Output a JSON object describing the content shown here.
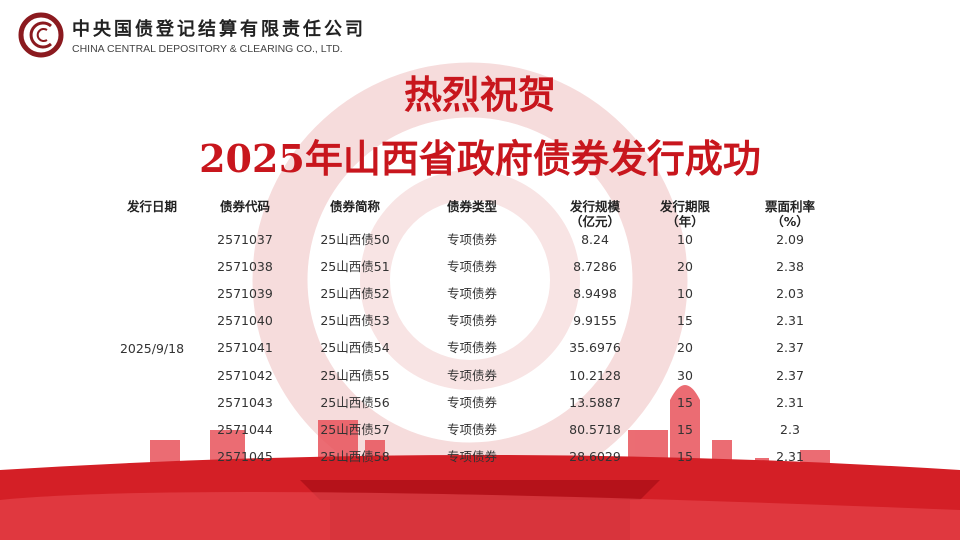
{
  "logo": {
    "cn": "中央国债登记结算有限责任公司",
    "en": "CHINA CENTRAL DEPOSITORY & CLEARING CO., LTD."
  },
  "title": {
    "line1": "热烈祝贺",
    "line2": "2025年山西省政府债券发行成功"
  },
  "colors": {
    "brand_red": "#c8161d",
    "text": "#333333"
  },
  "table": {
    "headers": [
      [
        "发行日期",
        ""
      ],
      [
        "债券代码",
        ""
      ],
      [
        "债券简称",
        ""
      ],
      [
        "债券类型",
        ""
      ],
      [
        "发行规模",
        "（亿元）"
      ],
      [
        "发行期限",
        "（年）"
      ],
      [
        "票面利率",
        "（%）"
      ]
    ],
    "issue_date": "2025/9/18",
    "rows": [
      {
        "code": "2571037",
        "name": "25山西债50",
        "type": "专项债券",
        "size": "8.24",
        "term": "10",
        "rate": "2.09"
      },
      {
        "code": "2571038",
        "name": "25山西债51",
        "type": "专项债券",
        "size": "8.7286",
        "term": "20",
        "rate": "2.38"
      },
      {
        "code": "2571039",
        "name": "25山西债52",
        "type": "专项债券",
        "size": "8.9498",
        "term": "10",
        "rate": "2.03"
      },
      {
        "code": "2571040",
        "name": "25山西债53",
        "type": "专项债券",
        "size": "9.9155",
        "term": "15",
        "rate": "2.31"
      },
      {
        "code": "2571041",
        "name": "25山西债54",
        "type": "专项债券",
        "size": "35.6976",
        "term": "20",
        "rate": "2.37"
      },
      {
        "code": "2571042",
        "name": "25山西债55",
        "type": "专项债券",
        "size": "10.2128",
        "term": "30",
        "rate": "2.37"
      },
      {
        "code": "2571043",
        "name": "25山西债56",
        "type": "专项债券",
        "size": "13.5887",
        "term": "15",
        "rate": "2.31"
      },
      {
        "code": "2571044",
        "name": "25山西债57",
        "type": "专项债券",
        "size": "80.5718",
        "term": "15",
        "rate": "2.3"
      },
      {
        "code": "2571045",
        "name": "25山西债58",
        "type": "专项债券",
        "size": "28.6029",
        "term": "15",
        "rate": "2.31"
      }
    ]
  }
}
